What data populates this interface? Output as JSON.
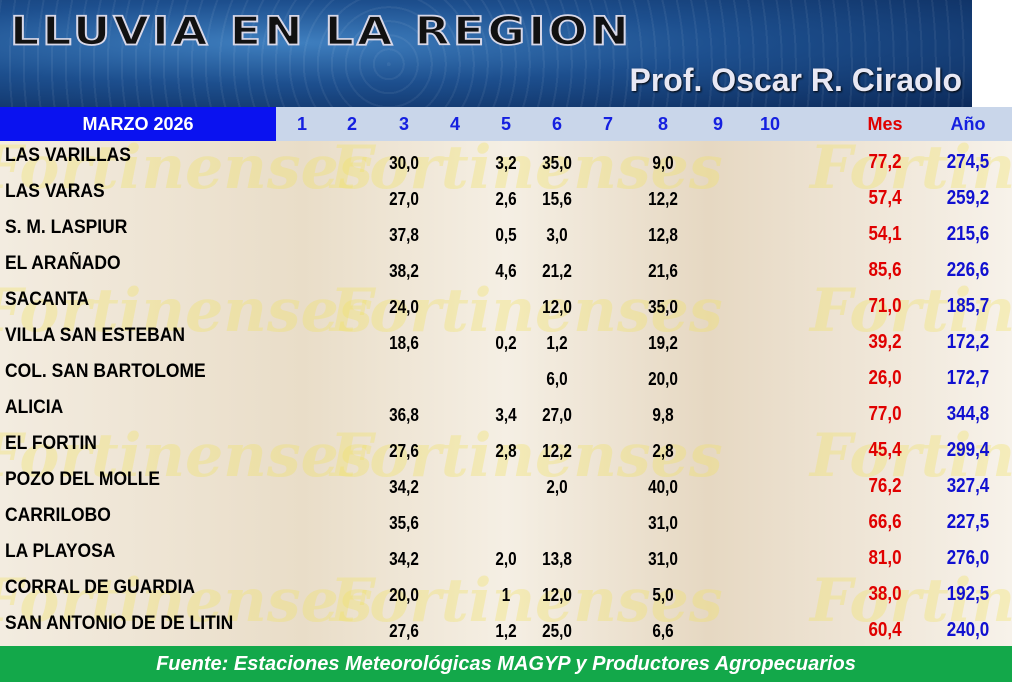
{
  "banner": {
    "title": "LLUVIA EN LA REGION",
    "author": "Prof. Oscar R. Ciraolo"
  },
  "header": {
    "month": "MARZO 2026",
    "days": [
      "1",
      "2",
      "3",
      "4",
      "5",
      "6",
      "7",
      "8",
      "9",
      "10"
    ],
    "mes": "Mes",
    "ano": "Año"
  },
  "watermark": "Fortinenses",
  "rows": [
    {
      "name": "LAS VARILLAS",
      "days": [
        "",
        "",
        "30,0",
        "",
        "3,2",
        "35,0",
        "",
        "9,0",
        "",
        ""
      ],
      "mes": "77,2",
      "ano": "274,5"
    },
    {
      "name": "LAS VARAS",
      "days": [
        "",
        "",
        "27,0",
        "",
        "2,6",
        "15,6",
        "",
        "12,2",
        "",
        ""
      ],
      "mes": "57,4",
      "ano": "259,2"
    },
    {
      "name": "S. M. LASPIUR",
      "days": [
        "",
        "",
        "37,8",
        "",
        "0,5",
        "3,0",
        "",
        "12,8",
        "",
        ""
      ],
      "mes": "54,1",
      "ano": "215,6"
    },
    {
      "name": "EL ARAÑADO",
      "days": [
        "",
        "",
        "38,2",
        "",
        "4,6",
        "21,2",
        "",
        "21,6",
        "",
        ""
      ],
      "mes": "85,6",
      "ano": "226,6"
    },
    {
      "name": "SACANTA",
      "days": [
        "",
        "",
        "24,0",
        "",
        "",
        "12,0",
        "",
        "35,0",
        "",
        ""
      ],
      "mes": "71,0",
      "ano": "185,7"
    },
    {
      "name": "VILLA SAN ESTEBAN",
      "days": [
        "",
        "",
        "18,6",
        "",
        "0,2",
        "1,2",
        "",
        "19,2",
        "",
        ""
      ],
      "mes": "39,2",
      "ano": "172,2"
    },
    {
      "name": "COL. SAN BARTOLOME",
      "days": [
        "",
        "",
        "",
        "",
        "",
        "6,0",
        "",
        "20,0",
        "",
        ""
      ],
      "mes": "26,0",
      "ano": "172,7"
    },
    {
      "name": "ALICIA",
      "days": [
        "",
        "",
        "36,8",
        "",
        "3,4",
        "27,0",
        "",
        "9,8",
        "",
        ""
      ],
      "mes": "77,0",
      "ano": "344,8"
    },
    {
      "name": "EL FORTIN",
      "days": [
        "",
        "",
        "27,6",
        "",
        "2,8",
        "12,2",
        "",
        "2,8",
        "",
        ""
      ],
      "mes": "45,4",
      "ano": "299,4"
    },
    {
      "name": "POZO DEL MOLLE",
      "days": [
        "",
        "",
        "34,2",
        "",
        "",
        "2,0",
        "",
        "40,0",
        "",
        ""
      ],
      "mes": "76,2",
      "ano": "327,4"
    },
    {
      "name": "CARRILOBO",
      "days": [
        "",
        "",
        "35,6",
        "",
        "",
        "",
        "",
        "31,0",
        "",
        ""
      ],
      "mes": "66,6",
      "ano": "227,5"
    },
    {
      "name": "LA PLAYOSA",
      "days": [
        "",
        "",
        "34,2",
        "",
        "2,0",
        "13,8",
        "",
        "31,0",
        "",
        ""
      ],
      "mes": "81,0",
      "ano": "276,0"
    },
    {
      "name": "CORRAL DE GUARDIA",
      "days": [
        "",
        "",
        "20,0",
        "",
        "1",
        "12,0",
        "",
        "5,0",
        "",
        ""
      ],
      "mes": "38,0",
      "ano": "192,5"
    },
    {
      "name": "SAN ANTONIO DE DE LITIN",
      "days": [
        "",
        "",
        "27,6",
        "",
        "1,2",
        "25,0",
        "",
        "6,6",
        "",
        ""
      ],
      "mes": "60,4",
      "ano": "240,0"
    }
  ],
  "footer": "Fuente: Estaciones Meteorológicas MAGYP y Productores Agropecuarios"
}
